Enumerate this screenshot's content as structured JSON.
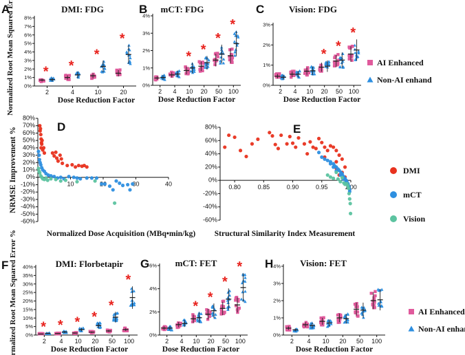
{
  "chart_data": [
    {
      "id": "A",
      "type": "scatter",
      "panel_label": "A",
      "title": "DMI: FDG",
      "xlabel": "Dose Reduction Factor",
      "ylabel": "Normalized Root Mean Squared Error %",
      "categories": [
        "2",
        "4",
        "10",
        "20"
      ],
      "ylim": [
        0,
        8
      ],
      "yticks": [
        "0%",
        "1%",
        "2%",
        "3%",
        "4%",
        "5%",
        "6%",
        "7%",
        "8%"
      ],
      "ai_means": [
        0.7,
        1.0,
        1.2,
        1.5
      ],
      "nonai_means": [
        0.75,
        1.3,
        2.3,
        3.7
      ],
      "significance": [
        "*",
        "*",
        "*",
        "*"
      ]
    },
    {
      "id": "B",
      "type": "scatter",
      "panel_label": "B",
      "title": "mCT: FDG",
      "xlabel": "Dose Reduction Factor",
      "ylabel": "",
      "categories": [
        "2",
        "4",
        "10",
        "20",
        "50",
        "100"
      ],
      "ylim": [
        0,
        4
      ],
      "yticks": [
        "0%",
        "1%",
        "2%",
        "3%",
        "4%"
      ],
      "ai_means": [
        0.42,
        0.6,
        0.85,
        1.1,
        1.45,
        1.7
      ],
      "nonai_means": [
        0.45,
        0.65,
        1.0,
        1.3,
        1.8,
        2.4
      ],
      "significance": [
        "",
        "",
        "*",
        "*",
        "*",
        "*"
      ]
    },
    {
      "id": "C",
      "type": "scatter",
      "panel_label": "C",
      "title": "Vision: FDG",
      "xlabel": "Dose Reduction Factor",
      "ylabel": "",
      "categories": [
        "2",
        "4",
        "10",
        "20",
        "50",
        "100"
      ],
      "ylim": [
        0,
        3
      ],
      "yticks": [
        "0%",
        "1%",
        "2%",
        "3%"
      ],
      "ai_means": [
        0.45,
        0.55,
        0.7,
        0.9,
        1.2,
        1.55
      ],
      "nonai_means": [
        0.4,
        0.55,
        0.72,
        0.95,
        1.25,
        1.75
      ],
      "significance": [
        "",
        "",
        "",
        "*",
        "*",
        "*"
      ],
      "legend": [
        "AI Enhanced",
        "Non-AI enhand"
      ]
    },
    {
      "id": "D",
      "type": "scatter",
      "panel_label": "D",
      "title": "",
      "xlabel": "Normalized Dose Acquisition (MBq•min/kg)",
      "ylabel": "NRMSE Improvement %",
      "xlim": [
        0,
        40
      ],
      "xticks": [
        "10",
        "20",
        "30",
        "40"
      ],
      "ylim": [
        -60,
        80
      ],
      "yticks": [
        "80%",
        "70%",
        "60%",
        "50%",
        "40%",
        "30%",
        "20%",
        "10%",
        "0%",
        "-10%",
        "-20%",
        "-30%",
        "-40%",
        "-50%",
        "-60%"
      ],
      "series": [
        {
          "name": "DMI",
          "points": [
            [
              0.6,
              70
            ],
            [
              0.7,
              63
            ],
            [
              0.8,
              66
            ],
            [
              0.9,
              58
            ],
            [
              1.0,
              52
            ],
            [
              1.1,
              47
            ],
            [
              1.2,
              45
            ],
            [
              1.3,
              50
            ],
            [
              1.0,
              40
            ],
            [
              1.5,
              37
            ],
            [
              1.8,
              40
            ],
            [
              2.0,
              33
            ],
            [
              4.5,
              33
            ],
            [
              5.0,
              29
            ],
            [
              5.5,
              34
            ],
            [
              5.8,
              26
            ],
            [
              6.2,
              22
            ],
            [
              6.8,
              30
            ],
            [
              7.2,
              25
            ],
            [
              7.5,
              19
            ],
            [
              9.0,
              16
            ],
            [
              10.5,
              17
            ],
            [
              11.5,
              14
            ],
            [
              12.5,
              16
            ],
            [
              13.5,
              15
            ],
            [
              14.2,
              16
            ],
            [
              15.0,
              14
            ]
          ]
        },
        {
          "name": "mCT",
          "points": [
            [
              0.2,
              35
            ],
            [
              0.4,
              30
            ],
            [
              0.5,
              24
            ],
            [
              0.7,
              20
            ],
            [
              0.9,
              17
            ],
            [
              1.2,
              13
            ],
            [
              1.5,
              10
            ],
            [
              2.0,
              8
            ],
            [
              2.5,
              5
            ],
            [
              3.2,
              3
            ],
            [
              4.0,
              2
            ],
            [
              5.0,
              1
            ],
            [
              6.0,
              -1
            ],
            [
              7.0,
              0
            ],
            [
              8.0,
              -2
            ],
            [
              9.5,
              1
            ],
            [
              11.0,
              0
            ],
            [
              12.0,
              -1
            ],
            [
              13.0,
              -2
            ],
            [
              15.0,
              -1
            ],
            [
              16.5,
              -1
            ],
            [
              18.0,
              -1
            ],
            [
              19.5,
              -9
            ],
            [
              20.5,
              -9
            ],
            [
              22.0,
              -12
            ],
            [
              23.0,
              -17
            ],
            [
              24.0,
              -5
            ],
            [
              25.0,
              -8
            ],
            [
              26.0,
              -11
            ],
            [
              27.5,
              -10
            ],
            [
              28.2,
              -17
            ],
            [
              29.0,
              -9
            ]
          ]
        },
        {
          "name": "Vision",
          "points": [
            [
              0.2,
              12
            ],
            [
              0.4,
              8
            ],
            [
              0.6,
              6
            ],
            [
              0.9,
              2
            ],
            [
              1.2,
              0
            ],
            [
              1.5,
              -2
            ],
            [
              2.0,
              -3
            ],
            [
              2.5,
              -1
            ],
            [
              3.0,
              -4
            ],
            [
              4.0,
              -2
            ],
            [
              5.5,
              -3
            ],
            [
              7.0,
              -5
            ],
            [
              8.5,
              -4
            ],
            [
              12.0,
              -6
            ],
            [
              17.5,
              -5
            ],
            [
              23.5,
              -35
            ]
          ]
        }
      ]
    },
    {
      "id": "E",
      "type": "scatter",
      "panel_label": "E",
      "title": "",
      "xlabel": "Structural Similarity Index Measurement",
      "ylabel": "",
      "xlim": [
        0.775,
        1.0
      ],
      "xticks": [
        "0.80",
        "0.85",
        "0.90",
        "0.95",
        "1.00"
      ],
      "ylim": [
        -60,
        80
      ],
      "yticks": [
        "80%",
        "60%",
        "40%",
        "20%",
        "0%",
        "-20%",
        "-40%",
        "-60%"
      ],
      "legend": [
        "DMI",
        "mCT",
        "Vision"
      ],
      "series": [
        {
          "name": "DMI",
          "points": [
            [
              0.783,
              50
            ],
            [
              0.79,
              68
            ],
            [
              0.8,
              65
            ],
            [
              0.81,
              45
            ],
            [
              0.82,
              36
            ],
            [
              0.83,
              55
            ],
            [
              0.84,
              62
            ],
            [
              0.86,
              72
            ],
            [
              0.865,
              67
            ],
            [
              0.87,
              54
            ],
            [
              0.875,
              48
            ],
            [
              0.88,
              68
            ],
            [
              0.89,
              55
            ],
            [
              0.895,
              66
            ],
            [
              0.9,
              56
            ],
            [
              0.905,
              50
            ],
            [
              0.91,
              64
            ],
            [
              0.92,
              55
            ],
            [
              0.925,
              40
            ],
            [
              0.93,
              58
            ],
            [
              0.935,
              50
            ],
            [
              0.94,
              48
            ],
            [
              0.945,
              63
            ],
            [
              0.95,
              57
            ],
            [
              0.955,
              50
            ],
            [
              0.96,
              45
            ],
            [
              0.965,
              52
            ],
            [
              0.97,
              50
            ],
            [
              0.975,
              45
            ],
            [
              0.98,
              38
            ],
            [
              0.985,
              32
            ],
            [
              0.955,
              35
            ],
            [
              0.975,
              28
            ],
            [
              0.99,
              20
            ],
            [
              0.975,
              18
            ],
            [
              0.98,
              8
            ],
            [
              0.985,
              12
            ],
            [
              0.99,
              5
            ]
          ]
        },
        {
          "name": "mCT",
          "points": [
            [
              0.945,
              42
            ],
            [
              0.95,
              35
            ],
            [
              0.955,
              32
            ],
            [
              0.96,
              30
            ],
            [
              0.965,
              28
            ],
            [
              0.97,
              25
            ],
            [
              0.972,
              22
            ],
            [
              0.975,
              20
            ],
            [
              0.978,
              17
            ],
            [
              0.98,
              15
            ],
            [
              0.983,
              12
            ],
            [
              0.985,
              10
            ],
            [
              0.986,
              7
            ],
            [
              0.988,
              5
            ],
            [
              0.99,
              3
            ],
            [
              0.992,
              0
            ],
            [
              0.993,
              -2
            ],
            [
              0.995,
              -5
            ],
            [
              0.996,
              -8
            ],
            [
              0.997,
              -10
            ],
            [
              0.998,
              -14
            ],
            [
              0.998,
              -17
            ],
            [
              0.965,
              25
            ],
            [
              0.97,
              20
            ],
            [
              0.975,
              14
            ],
            [
              0.982,
              8
            ],
            [
              0.987,
              2
            ],
            [
              0.991,
              -3
            ]
          ]
        },
        {
          "name": "Vision",
          "points": [
            [
              0.96,
              8
            ],
            [
              0.965,
              5
            ],
            [
              0.97,
              3
            ],
            [
              0.975,
              12
            ],
            [
              0.978,
              2
            ],
            [
              0.982,
              -2
            ],
            [
              0.985,
              4
            ],
            [
              0.988,
              -4
            ],
            [
              0.99,
              -6
            ],
            [
              0.993,
              -5
            ],
            [
              0.995,
              -8
            ],
            [
              0.996,
              -12
            ],
            [
              0.997,
              -20
            ],
            [
              0.998,
              -28
            ],
            [
              0.999,
              -35
            ],
            [
              0.9995,
              -50
            ]
          ]
        }
      ]
    },
    {
      "id": "F",
      "type": "scatter",
      "panel_label": "F",
      "title": "DMI: Florbetapir",
      "xlabel": "Dose Reduction Factor",
      "ylabel": "Normalized Root Mean Squared Error %",
      "categories": [
        "2",
        "4",
        "10",
        "20",
        "50",
        "100"
      ],
      "ylim": [
        0,
        40
      ],
      "yticks": [
        "0%",
        "5%",
        "10%",
        "15%",
        "20%",
        "25%",
        "30%",
        "35%",
        "40%"
      ],
      "ai_means": [
        0.6,
        0.9,
        1.2,
        1.7,
        2.4,
        3.2
      ],
      "nonai_means": [
        1.0,
        1.8,
        3.2,
        5.5,
        10.5,
        22.0
      ],
      "significance": [
        "*",
        "*",
        "*",
        "*",
        "*",
        "*"
      ]
    },
    {
      "id": "G",
      "type": "scatter",
      "panel_label": "G",
      "title": "mCT: FET",
      "xlabel": "Dose Reduction Factor",
      "ylabel": "",
      "categories": [
        "2",
        "4",
        "10",
        "20",
        "50",
        "100"
      ],
      "ylim": [
        0,
        6
      ],
      "yticks": [
        "0%",
        "2%",
        "4%",
        "6%"
      ],
      "ai_means": [
        0.6,
        0.9,
        1.4,
        1.8,
        2.3,
        2.6
      ],
      "nonai_means": [
        0.6,
        1.0,
        1.5,
        2.1,
        3.1,
        4.1
      ],
      "significance": [
        "",
        "",
        "*",
        "*",
        "*",
        "*"
      ]
    },
    {
      "id": "H",
      "type": "scatter",
      "panel_label": "H",
      "title": "Vision: FET",
      "xlabel": "Dose Reduction Factor",
      "ylabel": "",
      "categories": [
        "2",
        "4",
        "10",
        "20",
        "50",
        "100"
      ],
      "ylim": [
        0,
        4
      ],
      "yticks": [
        "0%",
        "1%",
        "2%",
        "3%",
        "4%"
      ],
      "ai_means": [
        0.4,
        0.6,
        0.8,
        1.0,
        1.5,
        2.0
      ],
      "nonai_means": [
        0.3,
        0.55,
        0.7,
        0.95,
        1.45,
        2.05
      ],
      "significance": [
        "",
        "",
        "",
        "",
        "",
        ""
      ],
      "legend": [
        "AI Enhanced",
        "Non-AI enhanced"
      ]
    }
  ],
  "colors": {
    "ai": "#e05a9c",
    "nonai": "#2e8fe0",
    "dmi": "#e8321e",
    "mct": "#2e8fe0",
    "vision": "#5cc3a0",
    "star": "#e8231e"
  }
}
